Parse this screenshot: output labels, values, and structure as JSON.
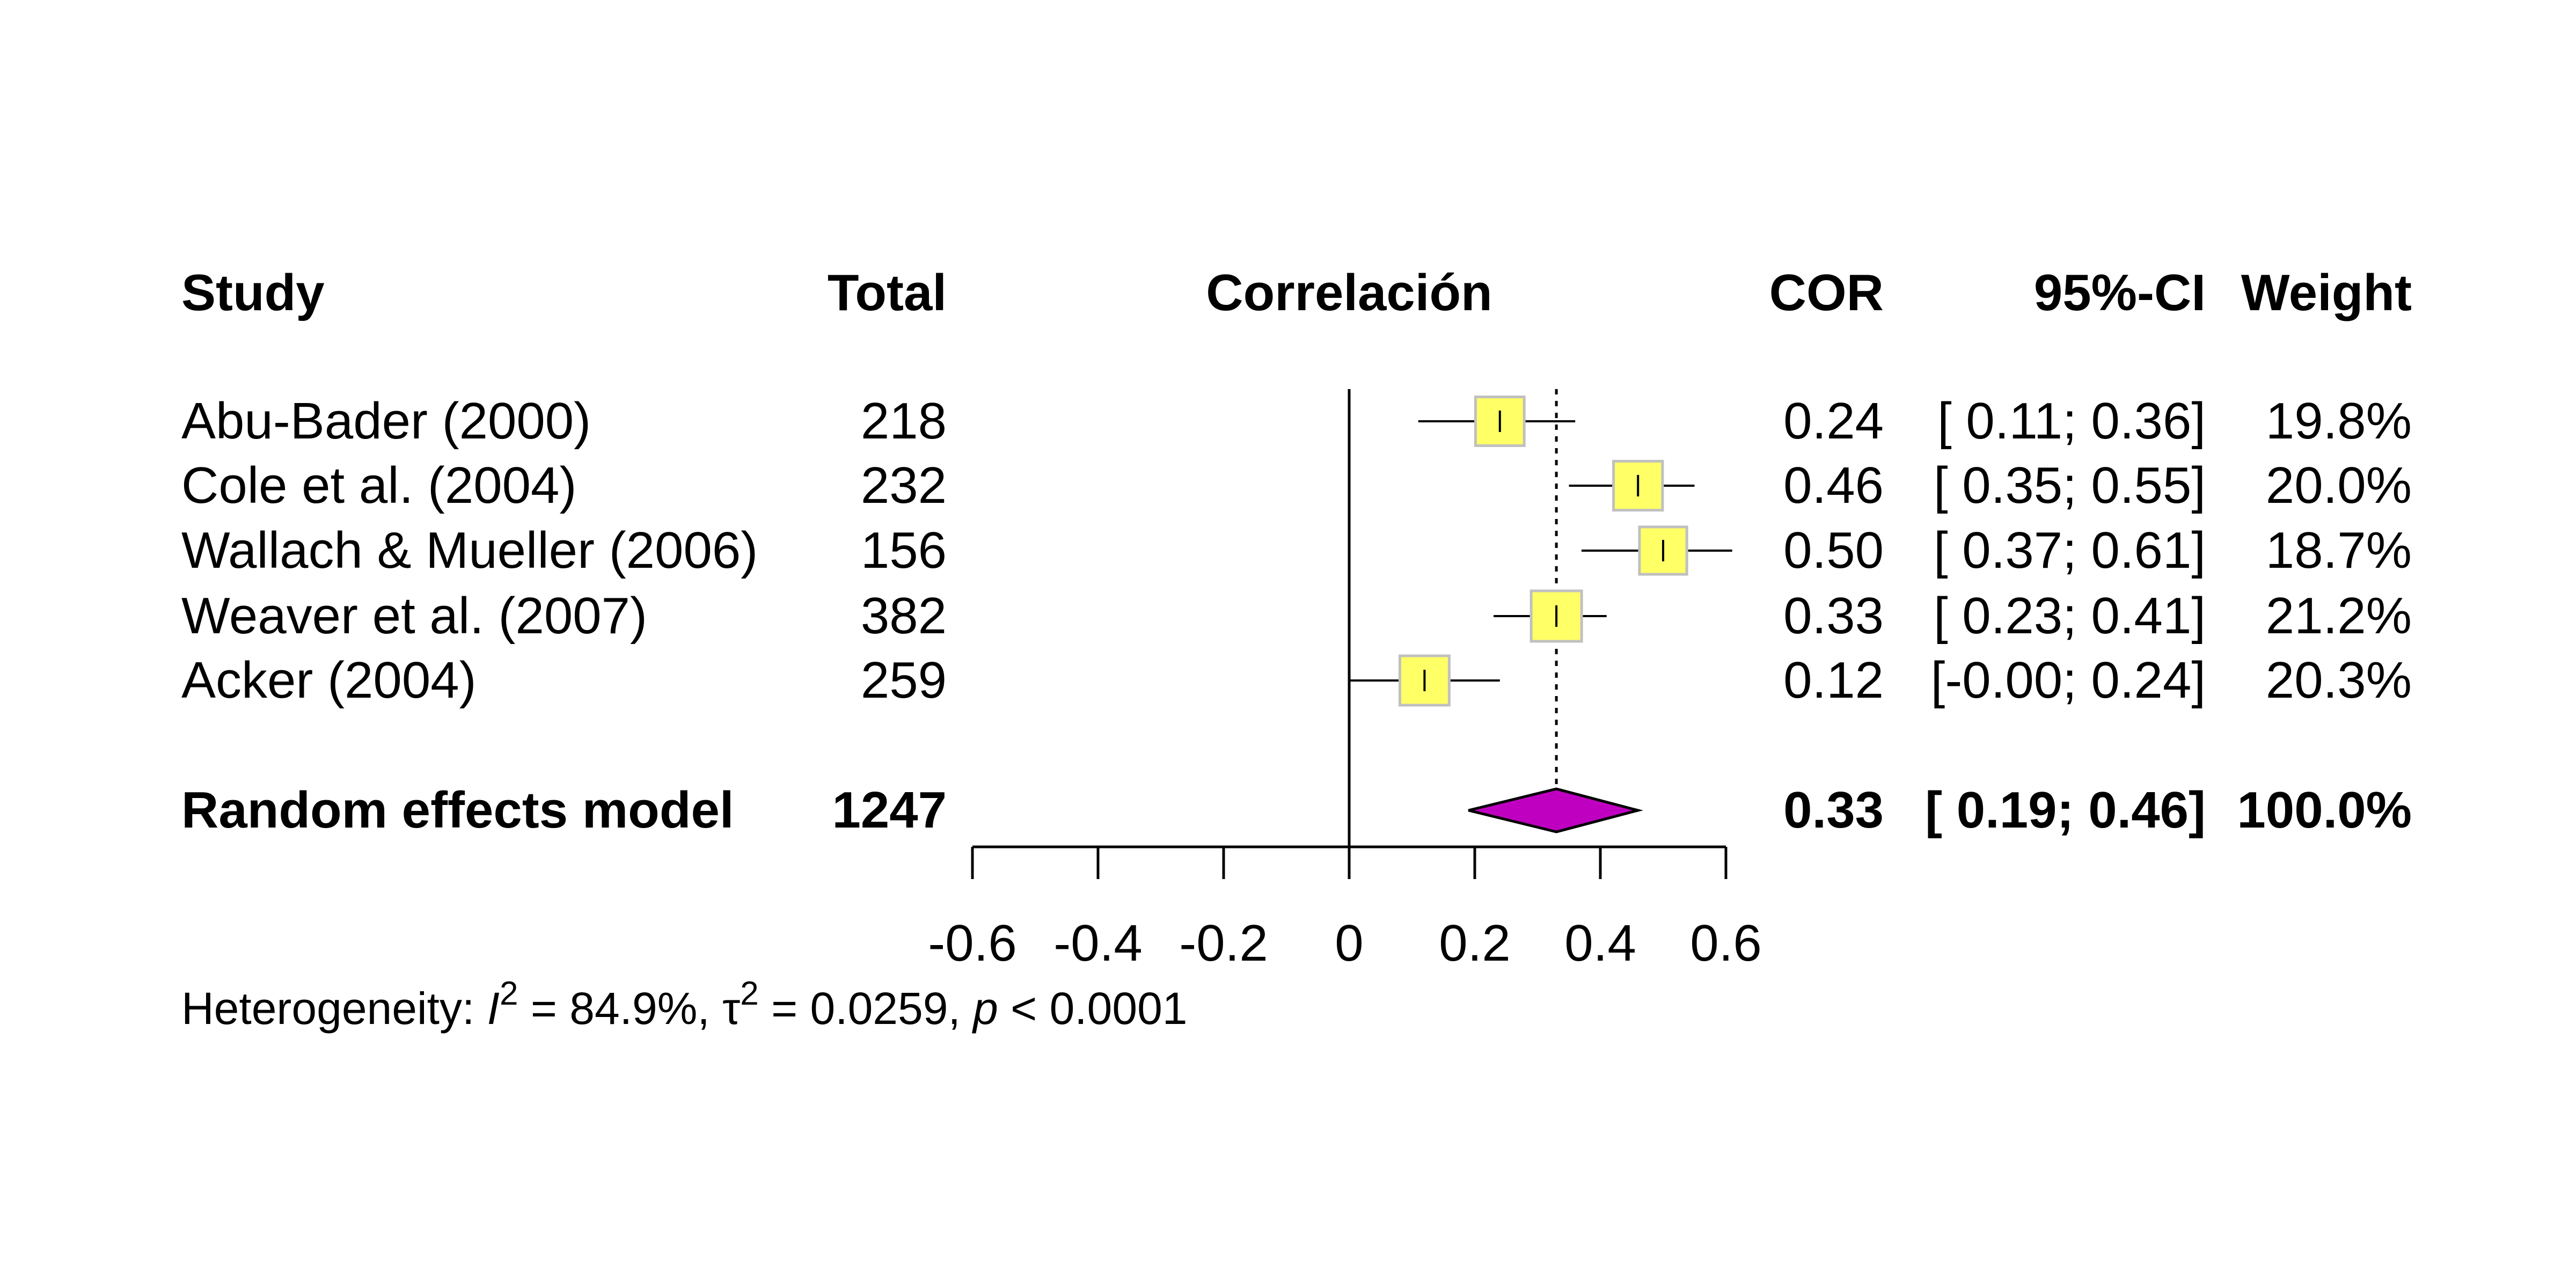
{
  "headers": {
    "study": "Study",
    "total": "Total",
    "effect": "Correlación",
    "estimate": "COR",
    "ci": "95%-CI",
    "weight": "Weight"
  },
  "chart_data": {
    "type": "forest",
    "xlim": [
      -0.6,
      0.6
    ],
    "xticks": [
      "-0.6",
      "-0.4",
      "-0.2",
      "0",
      "0.2",
      "0.4",
      "0.6"
    ],
    "null_line": 0,
    "pooled_line": 0.33,
    "studies": [
      {
        "name": "Abu-Bader (2000)",
        "total": "218",
        "cor": 0.24,
        "lower": 0.11,
        "upper": 0.36,
        "cor_text": "0.24",
        "ci_text": "[ 0.11; 0.36]",
        "weight_text": "19.8%",
        "weight": 19.8
      },
      {
        "name": "Cole et al. (2004)",
        "total": "232",
        "cor": 0.46,
        "lower": 0.35,
        "upper": 0.55,
        "cor_text": "0.46",
        "ci_text": "[ 0.35; 0.55]",
        "weight_text": "20.0%",
        "weight": 20.0
      },
      {
        "name": "Wallach & Mueller (2006)",
        "total": "156",
        "cor": 0.5,
        "lower": 0.37,
        "upper": 0.61,
        "cor_text": "0.50",
        "ci_text": "[ 0.37; 0.61]",
        "weight_text": "18.7%",
        "weight": 18.7
      },
      {
        "name": "Weaver et al. (2007)",
        "total": "382",
        "cor": 0.33,
        "lower": 0.23,
        "upper": 0.41,
        "cor_text": "0.33",
        "ci_text": "[ 0.23; 0.41]",
        "weight_text": "21.2%",
        "weight": 21.2
      },
      {
        "name": "Acker (2004)",
        "total": "259",
        "cor": 0.12,
        "lower": -0.0,
        "upper": 0.24,
        "cor_text": "0.12",
        "ci_text": "[-0.00; 0.24]",
        "weight_text": "20.3%",
        "weight": 20.3
      }
    ],
    "pooled": {
      "name": "Random effects model",
      "total": "1247",
      "cor": 0.33,
      "lower": 0.19,
      "upper": 0.46,
      "cor_text": "0.33",
      "ci_text": "[ 0.19; 0.46]",
      "weight_text": "100.0%"
    },
    "heterogeneity": {
      "prefix": "Heterogeneity: ",
      "I2": "84.9%",
      "tau2": "0.0259",
      "p": "0.0001"
    },
    "colors": {
      "square_fill": "#ffff66",
      "square_stroke": "#c0c0c0",
      "diamond_fill": "#c000c0"
    }
  }
}
